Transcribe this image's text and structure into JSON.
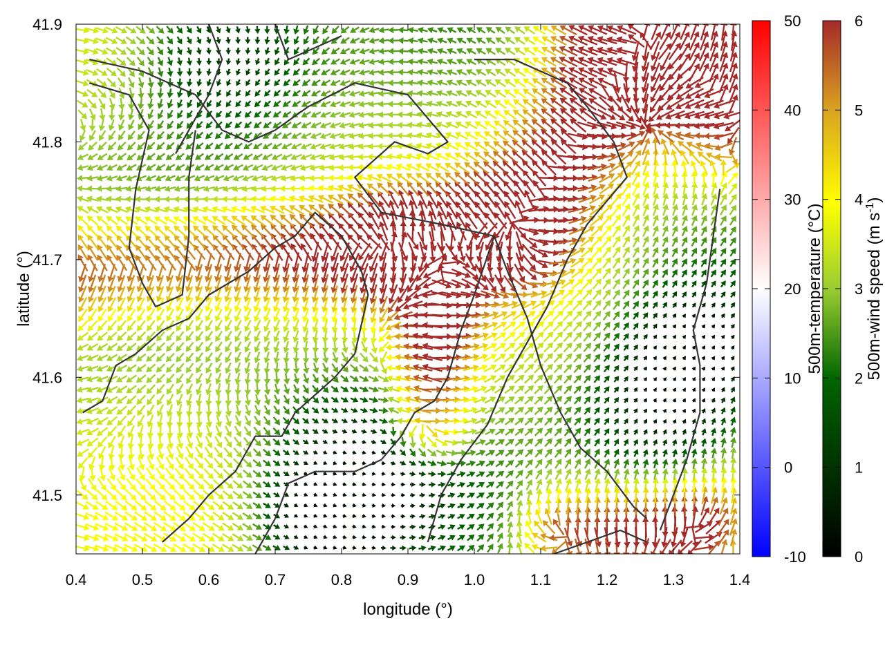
{
  "chart_data": {
    "type": "vector-field",
    "xlabel": "longitude (°)",
    "ylabel": "latitude (°)",
    "xlim": [
      0.4,
      1.4
    ],
    "ylim": [
      41.45,
      41.9
    ],
    "xticks": [
      "0.4",
      "0.5",
      "0.6",
      "0.7",
      "0.8",
      "0.9",
      "1.0",
      "1.1",
      "1.2",
      "1.3",
      "1.4"
    ],
    "yticks": [
      "41.5",
      "41.6",
      "41.7",
      "41.8",
      "41.9"
    ],
    "xtick_values": [
      0.4,
      0.5,
      0.6,
      0.7,
      0.8,
      0.9,
      1.0,
      1.1,
      1.2,
      1.3,
      1.4
    ],
    "ytick_values": [
      41.5,
      41.6,
      41.7,
      41.8,
      41.9
    ],
    "grid": false,
    "colorbars": [
      {
        "label": "500m-temperature (°C)",
        "range": [
          -10,
          50
        ],
        "ticks": [
          "50",
          "40",
          "30",
          "20",
          "10",
          "0",
          "-10"
        ],
        "tick_values": [
          50,
          40,
          30,
          20,
          10,
          0,
          -10
        ],
        "colors": [
          "#0000ff",
          "#ffffff",
          "#ff0000"
        ]
      },
      {
        "label": "500m-wind speed (m s",
        "label_sup": "-1",
        "label_end": ")",
        "range": [
          0,
          6
        ],
        "ticks": [
          "6",
          "5",
          "4",
          "3",
          "2",
          "1",
          "0"
        ],
        "tick_values": [
          6,
          5,
          4,
          3,
          2,
          1,
          0
        ],
        "colors": [
          "#000000",
          "#006400",
          "#9acd32",
          "#ffff00",
          "#daa520",
          "#a52a2a"
        ]
      }
    ],
    "wind_field": {
      "lon_range": [
        0.41,
        1.39
      ],
      "lat_range": [
        41.455,
        41.895
      ],
      "columns": 68,
      "rows": 50,
      "direction_note": "arrows point away from the red jet bands; calm centers are dark green"
    },
    "coastlines": [
      [
        [
          0.42,
          41.87
        ],
        [
          0.5,
          41.86
        ],
        [
          0.58,
          41.84
        ],
        [
          0.62,
          41.81
        ],
        [
          0.66,
          41.8
        ],
        [
          0.7,
          41.81
        ],
        [
          0.75,
          41.83
        ],
        [
          0.82,
          41.85
        ],
        [
          0.9,
          41.84
        ],
        [
          0.96,
          41.8
        ],
        [
          0.93,
          41.79
        ],
        [
          0.88,
          41.8
        ],
        [
          0.82,
          41.77
        ],
        [
          0.86,
          41.74
        ],
        [
          0.95,
          41.73
        ],
        [
          1.03,
          41.72
        ]
      ],
      [
        [
          0.6,
          41.9
        ],
        [
          0.62,
          41.87
        ],
        [
          0.6,
          41.84
        ],
        [
          0.57,
          41.81
        ],
        [
          0.55,
          41.79
        ]
      ],
      [
        [
          0.7,
          41.9
        ],
        [
          0.72,
          41.87
        ],
        [
          0.76,
          41.88
        ],
        [
          0.8,
          41.89
        ]
      ],
      [
        [
          0.42,
          41.85
        ],
        [
          0.48,
          41.84
        ],
        [
          0.51,
          41.81
        ],
        [
          0.49,
          41.76
        ],
        [
          0.48,
          41.71
        ],
        [
          0.5,
          41.68
        ],
        [
          0.52,
          41.66
        ],
        [
          0.56,
          41.67
        ],
        [
          0.57,
          41.72
        ],
        [
          0.57,
          41.77
        ],
        [
          0.58,
          41.81
        ]
      ],
      [
        [
          0.41,
          41.57
        ],
        [
          0.44,
          41.58
        ],
        [
          0.46,
          41.61
        ],
        [
          0.49,
          41.62
        ],
        [
          0.53,
          41.64
        ],
        [
          0.57,
          41.65
        ],
        [
          0.6,
          41.67
        ],
        [
          0.66,
          41.69
        ],
        [
          0.7,
          41.71
        ],
        [
          0.73,
          41.72
        ],
        [
          0.76,
          41.74
        ],
        [
          0.78,
          41.73
        ],
        [
          0.8,
          41.72
        ],
        [
          0.83,
          41.69
        ],
        [
          0.84,
          41.67
        ],
        [
          0.82,
          41.62
        ],
        [
          0.79,
          41.6
        ],
        [
          0.73,
          41.57
        ],
        [
          0.71,
          41.55
        ],
        [
          0.67,
          41.55
        ],
        [
          0.64,
          41.52
        ],
        [
          0.6,
          41.5
        ],
        [
          0.57,
          41.48
        ],
        [
          0.53,
          41.46
        ]
      ],
      [
        [
          0.67,
          41.45
        ],
        [
          0.7,
          41.48
        ],
        [
          0.72,
          41.51
        ],
        [
          0.76,
          41.52
        ],
        [
          0.82,
          41.52
        ],
        [
          0.86,
          41.53
        ],
        [
          0.89,
          41.55
        ],
        [
          0.91,
          41.57
        ],
        [
          0.94,
          41.58
        ],
        [
          0.96,
          41.6
        ],
        [
          0.98,
          41.64
        ],
        [
          1.0,
          41.67
        ],
        [
          1.03,
          41.72
        ]
      ],
      [
        [
          0.93,
          41.46
        ],
        [
          0.95,
          41.5
        ],
        [
          0.98,
          41.53
        ],
        [
          1.02,
          41.56
        ],
        [
          1.05,
          41.6
        ],
        [
          1.08,
          41.63
        ],
        [
          1.11,
          41.66
        ],
        [
          1.14,
          41.7
        ],
        [
          1.17,
          41.73
        ],
        [
          1.2,
          41.75
        ],
        [
          1.23,
          41.77
        ],
        [
          1.21,
          41.8
        ],
        [
          1.17,
          41.83
        ],
        [
          1.14,
          41.85
        ],
        [
          1.1,
          41.86
        ],
        [
          1.06,
          41.87
        ],
        [
          1.0,
          41.87
        ]
      ],
      [
        [
          1.03,
          41.72
        ],
        [
          1.05,
          41.69
        ],
        [
          1.08,
          41.65
        ],
        [
          1.1,
          41.61
        ],
        [
          1.13,
          41.57
        ],
        [
          1.16,
          41.54
        ],
        [
          1.2,
          41.52
        ],
        [
          1.24,
          41.49
        ],
        [
          1.26,
          41.48
        ]
      ],
      [
        [
          1.12,
          41.45
        ],
        [
          1.17,
          41.46
        ],
        [
          1.22,
          41.47
        ],
        [
          1.26,
          41.46
        ]
      ],
      [
        [
          1.28,
          41.47
        ],
        [
          1.3,
          41.5
        ],
        [
          1.32,
          41.53
        ],
        [
          1.34,
          41.57
        ],
        [
          1.34,
          41.61
        ],
        [
          1.33,
          41.64
        ],
        [
          1.35,
          41.68
        ],
        [
          1.36,
          41.72
        ],
        [
          1.37,
          41.76
        ]
      ]
    ]
  }
}
